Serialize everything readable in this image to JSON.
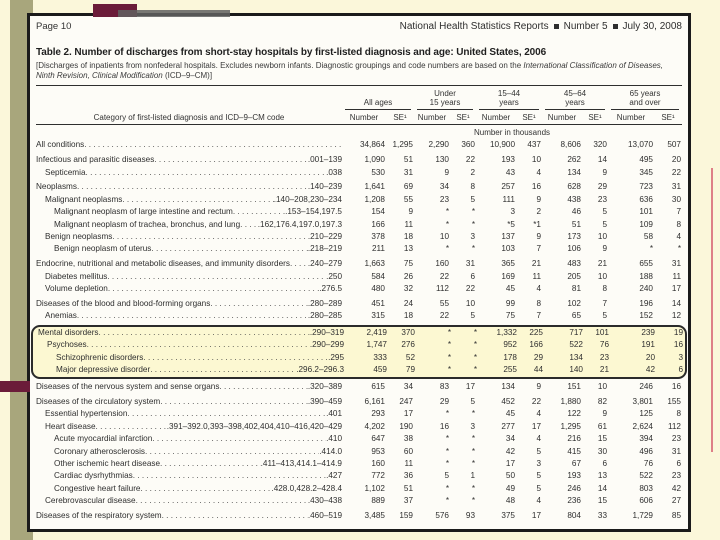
{
  "slide": {
    "colors": {
      "background": "#fbf7da",
      "band_olive": "#a8a67c",
      "accent_maroon": "#6b1c39",
      "scan_border": "#1b1b1b",
      "highlight_bg": "#fcf8d2",
      "smudge_gray": "#606060",
      "edge_line_red": "#d4576b"
    }
  },
  "scan": {
    "header": {
      "page_label": "Page 10",
      "publication": "National Health Statistics Reports",
      "bullet": "■",
      "issue": "Number 5",
      "date": "July 30, 2008"
    },
    "title": "Table 2. Number of discharges from short-stay hospitals by first-listed diagnosis and age: United States, 2006",
    "note": {
      "prefix": "[Discharges of inpatients from nonfederal hospitals. Excludes newborn infants. Diagnostic groupings and code numbers are based on the ",
      "italic": "International Classification of Diseases, Ninth Revision, Clinical Modification",
      "suffix": " (ICD–9–CM)]"
    },
    "table": {
      "diag_header": "Category of first-listed diagnosis and ICD–9–CM code",
      "groups": [
        {
          "line1": "",
          "line2": "All ages"
        },
        {
          "line1": "Under",
          "line2": "15 years"
        },
        {
          "line1": "15–44",
          "line2": "years"
        },
        {
          "line1": "45–64",
          "line2": "years"
        },
        {
          "line1": "65 years",
          "line2": "and over"
        }
      ],
      "sub_number": "Number",
      "sub_se": "SE¹",
      "units": "Number in thousands",
      "rows": [
        {
          "label": "All conditions",
          "code": "",
          "indent": 0,
          "hl": false,
          "v": [
            "34,864",
            "1,295",
            "2,290",
            "360",
            "10,900",
            "437",
            "8,606",
            "320",
            "13,070",
            "507"
          ]
        },
        {
          "label": "Infectious and parasitic diseases",
          "code": ".001–139",
          "indent": 0,
          "hl": false,
          "v": [
            "1,090",
            "51",
            "130",
            "22",
            "193",
            "10",
            "262",
            "14",
            "495",
            "20"
          ]
        },
        {
          "label": "Septicemia",
          "code": ".038",
          "indent": 1,
          "hl": false,
          "v": [
            "530",
            "31",
            "9",
            "2",
            "43",
            "4",
            "134",
            "9",
            "345",
            "22"
          ]
        },
        {
          "label": "Neoplasms",
          "code": ".140–239",
          "indent": 0,
          "hl": false,
          "v": [
            "1,641",
            "69",
            "34",
            "8",
            "257",
            "16",
            "628",
            "29",
            "723",
            "31"
          ]
        },
        {
          "label": "Malignant neoplasms",
          "code": ".140–208,230–234",
          "indent": 1,
          "hl": false,
          "v": [
            "1,208",
            "55",
            "23",
            "5",
            "111",
            "9",
            "438",
            "23",
            "636",
            "30"
          ]
        },
        {
          "label": "Malignant neoplasm of large intestine and rectum",
          "code": ".153–154,197.5",
          "indent": 2,
          "hl": false,
          "v": [
            "154",
            "9",
            "*",
            "*",
            "3",
            "2",
            "46",
            "5",
            "101",
            "7"
          ]
        },
        {
          "label": "Malignant neoplasm of trachea, bronchus, and lung",
          "code": ".162,176.4,197.0,197.3",
          "indent": 2,
          "hl": false,
          "v": [
            "166",
            "11",
            "*",
            "*",
            "*5",
            "*1",
            "51",
            "5",
            "109",
            "8"
          ]
        },
        {
          "label": "Benign neoplasms",
          "code": ".210–229",
          "indent": 1,
          "hl": false,
          "v": [
            "378",
            "18",
            "10",
            "3",
            "137",
            "9",
            "173",
            "10",
            "58",
            "4"
          ]
        },
        {
          "label": "Benign neoplasm of uterus",
          "code": ".218–219",
          "indent": 2,
          "hl": false,
          "v": [
            "211",
            "13",
            "*",
            "*",
            "103",
            "7",
            "106",
            "9",
            "*",
            "*"
          ]
        },
        {
          "label": "Endocrine, nutritional and metabolic diseases, and immunity disorders",
          "code": ".240–279",
          "indent": 0,
          "hl": false,
          "v": [
            "1,663",
            "75",
            "160",
            "31",
            "365",
            "21",
            "483",
            "21",
            "655",
            "31"
          ]
        },
        {
          "label": "Diabetes mellitus",
          "code": ".250",
          "indent": 1,
          "hl": false,
          "v": [
            "584",
            "26",
            "22",
            "6",
            "169",
            "11",
            "205",
            "10",
            "188",
            "11"
          ]
        },
        {
          "label": "Volume depletion",
          "code": ".276.5",
          "indent": 1,
          "hl": false,
          "v": [
            "480",
            "32",
            "112",
            "22",
            "45",
            "4",
            "81",
            "8",
            "240",
            "17"
          ]
        },
        {
          "label": "Diseases of the blood and blood-forming organs",
          "code": ".280–289",
          "indent": 0,
          "hl": false,
          "v": [
            "451",
            "24",
            "55",
            "10",
            "99",
            "8",
            "102",
            "7",
            "196",
            "14"
          ]
        },
        {
          "label": "Anemias",
          "code": ".280–285",
          "indent": 1,
          "hl": false,
          "v": [
            "315",
            "18",
            "22",
            "5",
            "75",
            "7",
            "65",
            "5",
            "152",
            "12"
          ]
        },
        {
          "label": "Mental disorders",
          "code": ".290–319",
          "indent": 0,
          "hl": true,
          "v": [
            "2,419",
            "370",
            "*",
            "*",
            "1,332",
            "225",
            "717",
            "101",
            "239",
            "19"
          ]
        },
        {
          "label": "Psychoses",
          "code": ".290–299",
          "indent": 1,
          "hl": true,
          "v": [
            "1,747",
            "276",
            "*",
            "*",
            "952",
            "166",
            "522",
            "76",
            "191",
            "16"
          ]
        },
        {
          "label": "Schizophrenic disorders",
          "code": ".295",
          "indent": 2,
          "hl": true,
          "v": [
            "333",
            "52",
            "*",
            "*",
            "178",
            "29",
            "134",
            "23",
            "20",
            "3"
          ]
        },
        {
          "label": "Major depressive disorder",
          "code": ".296.2–296.3",
          "indent": 2,
          "hl": true,
          "v": [
            "459",
            "79",
            "*",
            "*",
            "255",
            "44",
            "140",
            "21",
            "42",
            "6"
          ]
        },
        {
          "label": "Diseases of the nervous system and sense organs",
          "code": ".320–389",
          "indent": 0,
          "hl": false,
          "v": [
            "615",
            "34",
            "83",
            "17",
            "134",
            "9",
            "151",
            "10",
            "246",
            "16"
          ]
        },
        {
          "label": "Diseases of the circulatory system",
          "code": ".390–459",
          "indent": 0,
          "hl": false,
          "v": [
            "6,161",
            "247",
            "29",
            "5",
            "452",
            "22",
            "1,880",
            "82",
            "3,801",
            "155"
          ]
        },
        {
          "label": "Essential hypertension",
          "code": ".401",
          "indent": 1,
          "hl": false,
          "v": [
            "293",
            "17",
            "*",
            "*",
            "45",
            "4",
            "122",
            "9",
            "125",
            "8"
          ]
        },
        {
          "label": "Heart disease",
          "code": ".391–392.0,393–398,402,404,410–416,420–429",
          "indent": 1,
          "hl": false,
          "v": [
            "4,202",
            "190",
            "16",
            "3",
            "277",
            "17",
            "1,295",
            "61",
            "2,624",
            "112"
          ]
        },
        {
          "label": "Acute myocardial infarction",
          "code": ".410",
          "indent": 2,
          "hl": false,
          "v": [
            "647",
            "38",
            "*",
            "*",
            "34",
            "4",
            "216",
            "15",
            "394",
            "23"
          ]
        },
        {
          "label": "Coronary atherosclerosis",
          "code": ".414.0",
          "indent": 2,
          "hl": false,
          "v": [
            "953",
            "60",
            "*",
            "*",
            "42",
            "5",
            "415",
            "30",
            "496",
            "31"
          ]
        },
        {
          "label": "Other ischemic heart disease",
          "code": ".411–413,414.1–414.9",
          "indent": 2,
          "hl": false,
          "v": [
            "160",
            "11",
            "*",
            "*",
            "17",
            "3",
            "67",
            "6",
            "76",
            "6"
          ]
        },
        {
          "label": "Cardiac dysrhythmias",
          "code": ".427",
          "indent": 2,
          "hl": false,
          "v": [
            "772",
            "36",
            "5",
            "1",
            "50",
            "5",
            "193",
            "13",
            "522",
            "23"
          ]
        },
        {
          "label": "Congestive heart failure",
          "code": ".428.0,428.2–428.4",
          "indent": 2,
          "hl": false,
          "v": [
            "1,102",
            "51",
            "*",
            "*",
            "49",
            "5",
            "246",
            "14",
            "803",
            "42"
          ]
        },
        {
          "label": "Cerebrovascular disease",
          "code": ".430–438",
          "indent": 1,
          "hl": false,
          "v": [
            "889",
            "37",
            "*",
            "*",
            "48",
            "4",
            "236",
            "15",
            "606",
            "27"
          ]
        },
        {
          "label": "Diseases of the respiratory system",
          "code": ".460–519",
          "indent": 0,
          "hl": false,
          "v": [
            "3,485",
            "159",
            "576",
            "93",
            "375",
            "17",
            "804",
            "33",
            "1,729",
            "85"
          ]
        }
      ]
    }
  }
}
